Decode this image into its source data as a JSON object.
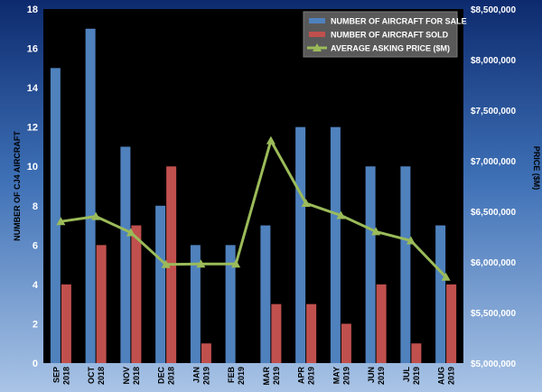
{
  "chart_data": {
    "type": "bar",
    "categories": [
      [
        "SEP",
        "2018"
      ],
      [
        "OCT",
        "2018"
      ],
      [
        "NOV",
        "2018"
      ],
      [
        "DEC",
        "2018"
      ],
      [
        "JAN",
        "2019"
      ],
      [
        "FEB",
        "2019"
      ],
      [
        "MAR",
        "2019"
      ],
      [
        "APR",
        "2019"
      ],
      [
        "MAY",
        "2019"
      ],
      [
        "JUN",
        "2019"
      ],
      [
        "JUL",
        "2019"
      ],
      [
        "AUG",
        "2019"
      ]
    ],
    "series": [
      {
        "name": "NUMBER OF AIRCRAFT FOR SALE",
        "type": "bar",
        "axis": "left",
        "color": "#4f81bd",
        "values": [
          15,
          17,
          11,
          8,
          6,
          6,
          7,
          12,
          12,
          10,
          10,
          7
        ]
      },
      {
        "name": "NUMBER OF AIRCRAFT SOLD",
        "type": "bar",
        "axis": "left",
        "color": "#c0504d",
        "values": [
          4,
          6,
          7,
          10,
          1,
          0,
          3,
          3,
          2,
          4,
          1,
          4
        ]
      },
      {
        "name": "AVERAGE ASKING PRICE ($M)",
        "type": "line",
        "axis": "right",
        "color": "#9bbb59",
        "values": [
          6400000,
          6450000,
          6290000,
          5975000,
          5980000,
          5980000,
          7200000,
          6580000,
          6460000,
          6300000,
          6210000,
          5850000
        ]
      }
    ],
    "ylabel": "NUMBER OF CJ4 AIRCRAFT",
    "y2label": "PRICE ($M)",
    "ylim": [
      0,
      18
    ],
    "y_ticks": [
      "0",
      "2",
      "4",
      "6",
      "8",
      "10",
      "12",
      "14",
      "16",
      "18"
    ],
    "y2lim": [
      5000000,
      8500000
    ],
    "y2_ticks": [
      "$5,000,000",
      "$5,500,000",
      "$6,000,000",
      "$6,500,000",
      "$7,000,000",
      "$7,500,000",
      "$8,000,000",
      "$8,500,000"
    ],
    "grid": false,
    "legend_position": "top-right",
    "colors": {
      "plot_background": "#000000"
    }
  }
}
